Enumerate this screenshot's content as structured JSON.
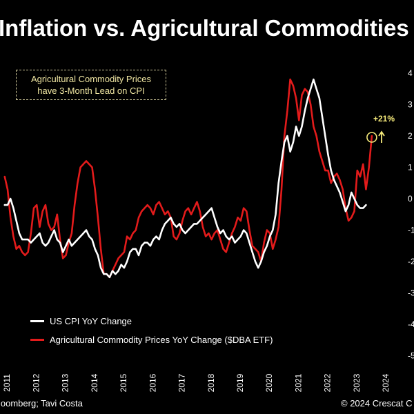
{
  "header": {
    "title": "Inflation vs. Agricultural Commodities"
  },
  "annotation": {
    "line1": "Agricultural Commodity Prices",
    "line2": "have 3-Month Lead on CPI"
  },
  "callout": {
    "text": "+21%"
  },
  "footer": {
    "source": "loomberg; Tavi Costa",
    "copyright": "© 2024 Crescat C"
  },
  "colors": {
    "background": "#000000",
    "cpi": "#ffffff",
    "ag": "#e31b1b",
    "callout": "#f4e97a",
    "annotation_text": "#f1e7a3"
  },
  "chart_data": {
    "type": "line",
    "title": "Inflation vs. Agricultural Commodities",
    "x_ticks": [
      "2011",
      "2012",
      "2013",
      "2014",
      "2015",
      "2016",
      "2017",
      "2018",
      "2019",
      "2020",
      "2021",
      "2022",
      "2023",
      "2024"
    ],
    "right_axis_ticks": [
      "4",
      "3",
      "2",
      "1",
      "0",
      "-1",
      "-2",
      "-3",
      "-4",
      "-5"
    ],
    "xlim": [
      2010.8,
      2024.3
    ],
    "legend": [
      "US CPI YoY Change",
      "Agricultural Commodity Prices YoY Change ($DBA ETF)"
    ],
    "legend_position": "bottom-left",
    "grid": false,
    "series": [
      {
        "name": "US CPI YoY Change",
        "color": "#ffffff",
        "points": [
          [
            2010.9,
            -0.2
          ],
          [
            2011.0,
            -0.2
          ],
          [
            2011.1,
            0.0
          ],
          [
            2011.2,
            -0.3
          ],
          [
            2011.3,
            -0.7
          ],
          [
            2011.4,
            -1.1
          ],
          [
            2011.5,
            -1.3
          ],
          [
            2011.6,
            -1.3
          ],
          [
            2011.7,
            -1.3
          ],
          [
            2011.8,
            -1.4
          ],
          [
            2011.9,
            -1.3
          ],
          [
            2012.0,
            -1.2
          ],
          [
            2012.1,
            -1.1
          ],
          [
            2012.2,
            -1.4
          ],
          [
            2012.3,
            -1.5
          ],
          [
            2012.4,
            -1.4
          ],
          [
            2012.5,
            -1.2
          ],
          [
            2012.6,
            -1.0
          ],
          [
            2012.7,
            -1.3
          ],
          [
            2012.8,
            -1.4
          ],
          [
            2012.9,
            -1.7
          ],
          [
            2013.0,
            -1.5
          ],
          [
            2013.1,
            -1.3
          ],
          [
            2013.2,
            -1.5
          ],
          [
            2013.3,
            -1.4
          ],
          [
            2013.4,
            -1.3
          ],
          [
            2013.5,
            -1.2
          ],
          [
            2013.6,
            -1.1
          ],
          [
            2013.7,
            -1.0
          ],
          [
            2013.8,
            -1.2
          ],
          [
            2013.9,
            -1.3
          ],
          [
            2014.0,
            -1.6
          ],
          [
            2014.1,
            -1.8
          ],
          [
            2014.2,
            -2.2
          ],
          [
            2014.3,
            -2.4
          ],
          [
            2014.4,
            -2.4
          ],
          [
            2014.5,
            -2.5
          ],
          [
            2014.6,
            -2.3
          ],
          [
            2014.7,
            -2.4
          ],
          [
            2014.8,
            -2.3
          ],
          [
            2014.9,
            -2.1
          ],
          [
            2015.0,
            -2.2
          ],
          [
            2015.1,
            -2.0
          ],
          [
            2015.2,
            -1.7
          ],
          [
            2015.3,
            -1.6
          ],
          [
            2015.4,
            -1.6
          ],
          [
            2015.5,
            -1.8
          ],
          [
            2015.6,
            -1.5
          ],
          [
            2015.7,
            -1.4
          ],
          [
            2015.8,
            -1.4
          ],
          [
            2015.9,
            -1.5
          ],
          [
            2016.0,
            -1.3
          ],
          [
            2016.1,
            -1.2
          ],
          [
            2016.2,
            -1.3
          ],
          [
            2016.3,
            -1.0
          ],
          [
            2016.4,
            -0.8
          ],
          [
            2016.5,
            -0.7
          ],
          [
            2016.6,
            -0.6
          ],
          [
            2016.7,
            -0.8
          ],
          [
            2016.8,
            -0.9
          ],
          [
            2016.9,
            -0.8
          ],
          [
            2017.0,
            -1.0
          ],
          [
            2017.1,
            -1.1
          ],
          [
            2017.2,
            -1.0
          ],
          [
            2017.3,
            -0.9
          ],
          [
            2017.4,
            -0.8
          ],
          [
            2017.5,
            -0.8
          ],
          [
            2017.6,
            -0.7
          ],
          [
            2017.7,
            -0.6
          ],
          [
            2017.8,
            -0.5
          ],
          [
            2017.9,
            -0.4
          ],
          [
            2018.0,
            -0.3
          ],
          [
            2018.1,
            -0.6
          ],
          [
            2018.2,
            -0.9
          ],
          [
            2018.3,
            -1.1
          ],
          [
            2018.4,
            -1.0
          ],
          [
            2018.5,
            -1.2
          ],
          [
            2018.6,
            -1.3
          ],
          [
            2018.7,
            -1.2
          ],
          [
            2018.8,
            -1.4
          ],
          [
            2018.9,
            -1.3
          ],
          [
            2019.0,
            -1.2
          ],
          [
            2019.1,
            -1.0
          ],
          [
            2019.2,
            -1.1
          ],
          [
            2019.3,
            -1.4
          ],
          [
            2019.4,
            -1.7
          ],
          [
            2019.5,
            -2.0
          ],
          [
            2019.6,
            -2.2
          ],
          [
            2019.7,
            -2.0
          ],
          [
            2019.8,
            -1.7
          ],
          [
            2019.9,
            -1.5
          ],
          [
            2020.0,
            -1.2
          ],
          [
            2020.1,
            -1.0
          ],
          [
            2020.2,
            -0.5
          ],
          [
            2020.3,
            0.5
          ],
          [
            2020.4,
            1.2
          ],
          [
            2020.5,
            1.8
          ],
          [
            2020.6,
            2.0
          ],
          [
            2020.7,
            1.5
          ],
          [
            2020.8,
            1.8
          ],
          [
            2020.9,
            2.3
          ],
          [
            2021.0,
            2.0
          ],
          [
            2021.1,
            2.3
          ],
          [
            2021.2,
            2.8
          ],
          [
            2021.3,
            3.2
          ],
          [
            2021.4,
            3.5
          ],
          [
            2021.5,
            3.8
          ],
          [
            2021.6,
            3.5
          ],
          [
            2021.7,
            3.2
          ],
          [
            2021.8,
            2.6
          ],
          [
            2021.9,
            2.0
          ],
          [
            2022.0,
            1.4
          ],
          [
            2022.1,
            0.9
          ],
          [
            2022.2,
            0.6
          ],
          [
            2022.3,
            0.4
          ],
          [
            2022.4,
            0.2
          ],
          [
            2022.5,
            -0.1
          ],
          [
            2022.6,
            -0.4
          ],
          [
            2022.7,
            -0.2
          ],
          [
            2022.8,
            0.2
          ],
          [
            2022.9,
            0.0
          ],
          [
            2023.0,
            -0.2
          ],
          [
            2023.1,
            -0.3
          ],
          [
            2023.2,
            -0.3
          ],
          [
            2023.3,
            -0.2
          ]
        ]
      },
      {
        "name": "Agricultural Commodity Prices YoY Change ($DBA ETF)",
        "color": "#e31b1b",
        "points": [
          [
            2010.9,
            0.7
          ],
          [
            2011.0,
            0.3
          ],
          [
            2011.1,
            -0.6
          ],
          [
            2011.2,
            -1.2
          ],
          [
            2011.3,
            -1.6
          ],
          [
            2011.4,
            -1.5
          ],
          [
            2011.5,
            -1.7
          ],
          [
            2011.6,
            -1.8
          ],
          [
            2011.7,
            -1.7
          ],
          [
            2011.8,
            -1.1
          ],
          [
            2011.9,
            -0.3
          ],
          [
            2012.0,
            -0.2
          ],
          [
            2012.1,
            -0.9
          ],
          [
            2012.2,
            -0.4
          ],
          [
            2012.3,
            -0.2
          ],
          [
            2012.4,
            -0.8
          ],
          [
            2012.5,
            -1.0
          ],
          [
            2012.6,
            -0.9
          ],
          [
            2012.7,
            -0.5
          ],
          [
            2012.8,
            -1.3
          ],
          [
            2012.9,
            -1.9
          ],
          [
            2013.0,
            -1.8
          ],
          [
            2013.1,
            -1.4
          ],
          [
            2013.2,
            -1.1
          ],
          [
            2013.3,
            -0.2
          ],
          [
            2013.4,
            0.5
          ],
          [
            2013.5,
            1.0
          ],
          [
            2013.6,
            1.1
          ],
          [
            2013.7,
            1.2
          ],
          [
            2013.8,
            1.1
          ],
          [
            2013.9,
            1.0
          ],
          [
            2014.0,
            0.3
          ],
          [
            2014.1,
            -0.6
          ],
          [
            2014.2,
            -1.6
          ],
          [
            2014.3,
            -2.4
          ],
          [
            2014.4,
            -2.4
          ],
          [
            2014.5,
            -2.5
          ],
          [
            2014.6,
            -2.3
          ],
          [
            2014.7,
            -2.1
          ],
          [
            2014.8,
            -1.9
          ],
          [
            2014.9,
            -1.8
          ],
          [
            2015.0,
            -1.7
          ],
          [
            2015.1,
            -1.2
          ],
          [
            2015.2,
            -1.3
          ],
          [
            2015.3,
            -1.1
          ],
          [
            2015.4,
            -1.0
          ],
          [
            2015.5,
            -0.6
          ],
          [
            2015.6,
            -0.4
          ],
          [
            2015.7,
            -0.3
          ],
          [
            2015.8,
            -0.2
          ],
          [
            2015.9,
            -0.3
          ],
          [
            2016.0,
            -0.5
          ],
          [
            2016.1,
            -0.2
          ],
          [
            2016.2,
            -0.1
          ],
          [
            2016.3,
            -0.3
          ],
          [
            2016.4,
            -0.5
          ],
          [
            2016.5,
            -0.4
          ],
          [
            2016.6,
            -0.6
          ],
          [
            2016.7,
            -1.2
          ],
          [
            2016.8,
            -1.3
          ],
          [
            2016.9,
            -1.1
          ],
          [
            2017.0,
            -0.7
          ],
          [
            2017.1,
            -0.4
          ],
          [
            2017.2,
            -0.3
          ],
          [
            2017.3,
            -0.5
          ],
          [
            2017.4,
            -0.3
          ],
          [
            2017.5,
            -0.1
          ],
          [
            2017.6,
            -0.4
          ],
          [
            2017.7,
            -0.9
          ],
          [
            2017.8,
            -1.2
          ],
          [
            2017.9,
            -1.1
          ],
          [
            2018.0,
            -1.3
          ],
          [
            2018.1,
            -1.1
          ],
          [
            2018.2,
            -1.0
          ],
          [
            2018.3,
            -1.3
          ],
          [
            2018.4,
            -1.6
          ],
          [
            2018.5,
            -1.7
          ],
          [
            2018.6,
            -1.4
          ],
          [
            2018.7,
            -1.1
          ],
          [
            2018.8,
            -0.9
          ],
          [
            2018.9,
            -0.6
          ],
          [
            2019.0,
            -0.7
          ],
          [
            2019.1,
            -0.3
          ],
          [
            2019.2,
            -0.4
          ],
          [
            2019.3,
            -1.0
          ],
          [
            2019.4,
            -1.5
          ],
          [
            2019.5,
            -1.6
          ],
          [
            2019.6,
            -1.7
          ],
          [
            2019.7,
            -2.0
          ],
          [
            2019.8,
            -1.4
          ],
          [
            2019.9,
            -1.0
          ],
          [
            2020.0,
            -1.1
          ],
          [
            2020.1,
            -1.6
          ],
          [
            2020.2,
            -1.3
          ],
          [
            2020.3,
            -0.9
          ],
          [
            2020.4,
            0.3
          ],
          [
            2020.5,
            2.0
          ],
          [
            2020.6,
            2.8
          ],
          [
            2020.7,
            3.8
          ],
          [
            2020.8,
            3.6
          ],
          [
            2020.9,
            3.2
          ],
          [
            2021.0,
            2.5
          ],
          [
            2021.1,
            3.3
          ],
          [
            2021.2,
            3.5
          ],
          [
            2021.3,
            3.4
          ],
          [
            2021.4,
            3.0
          ],
          [
            2021.5,
            2.3
          ],
          [
            2021.6,
            2.0
          ],
          [
            2021.7,
            1.5
          ],
          [
            2021.8,
            1.2
          ],
          [
            2021.9,
            0.9
          ],
          [
            2022.0,
            0.9
          ],
          [
            2022.1,
            0.5
          ],
          [
            2022.2,
            0.7
          ],
          [
            2022.3,
            0.8
          ],
          [
            2022.4,
            0.6
          ],
          [
            2022.5,
            0.3
          ],
          [
            2022.6,
            -0.3
          ],
          [
            2022.7,
            -0.7
          ],
          [
            2022.8,
            -0.6
          ],
          [
            2022.9,
            -0.4
          ],
          [
            2023.0,
            0.9
          ],
          [
            2023.1,
            0.7
          ],
          [
            2023.2,
            1.1
          ],
          [
            2023.3,
            0.3
          ],
          [
            2023.4,
            1.0
          ],
          [
            2023.5,
            2.0
          ]
        ]
      }
    ],
    "annotation": {
      "text": "+21%",
      "x": 2023.5,
      "y": 2.0
    }
  }
}
